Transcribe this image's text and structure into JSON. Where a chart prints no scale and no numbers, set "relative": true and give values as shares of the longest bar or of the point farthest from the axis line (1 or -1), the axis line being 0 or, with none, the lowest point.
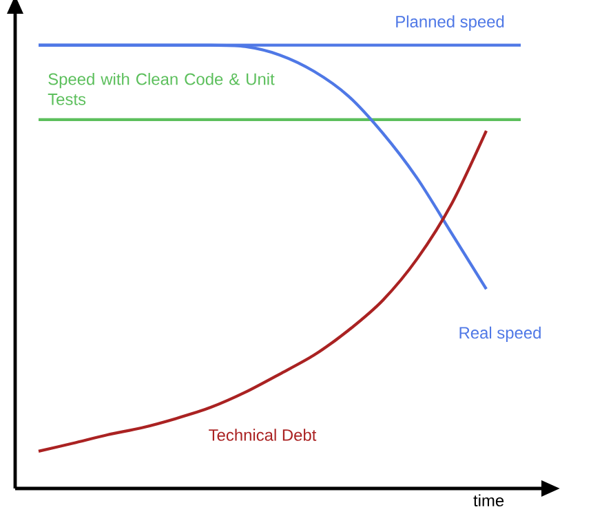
{
  "chart_data": {
    "type": "line",
    "relative": true,
    "xlabel": "time",
    "categories": [
      null,
      null,
      null,
      null,
      null,
      null,
      null,
      null,
      null,
      null,
      null,
      null,
      null,
      null,
      null
    ],
    "series": [
      {
        "name": "Planned speed",
        "color": "#4f78e6",
        "values": [
          1,
          1,
          1,
          1,
          1,
          1,
          1,
          1,
          1,
          1,
          1,
          1,
          1,
          1,
          1
        ]
      },
      {
        "name": "Speed with Clean Code & Unit Tests",
        "color": "#5cbf5c",
        "values": [
          0.832,
          0.832,
          0.832,
          0.832,
          0.832,
          0.832,
          0.832,
          0.832,
          0.832,
          0.832,
          0.832,
          0.832,
          0.832,
          0.832,
          0.832
        ]
      },
      {
        "name": "Real speed",
        "color": "#4f78e6",
        "values": [
          1,
          1,
          1,
          1,
          1,
          1,
          0.997,
          0.978,
          0.941,
          0.885,
          0.801,
          0.699,
          0.575,
          0.45,
          null
        ]
      },
      {
        "name": "Technical Debt",
        "color": "#aa2222",
        "values": [
          0.084,
          0.102,
          0.121,
          0.137,
          0.158,
          0.183,
          0.217,
          0.258,
          0.301,
          0.357,
          0.425,
          0.519,
          0.643,
          0.807,
          null
        ]
      }
    ]
  }
}
